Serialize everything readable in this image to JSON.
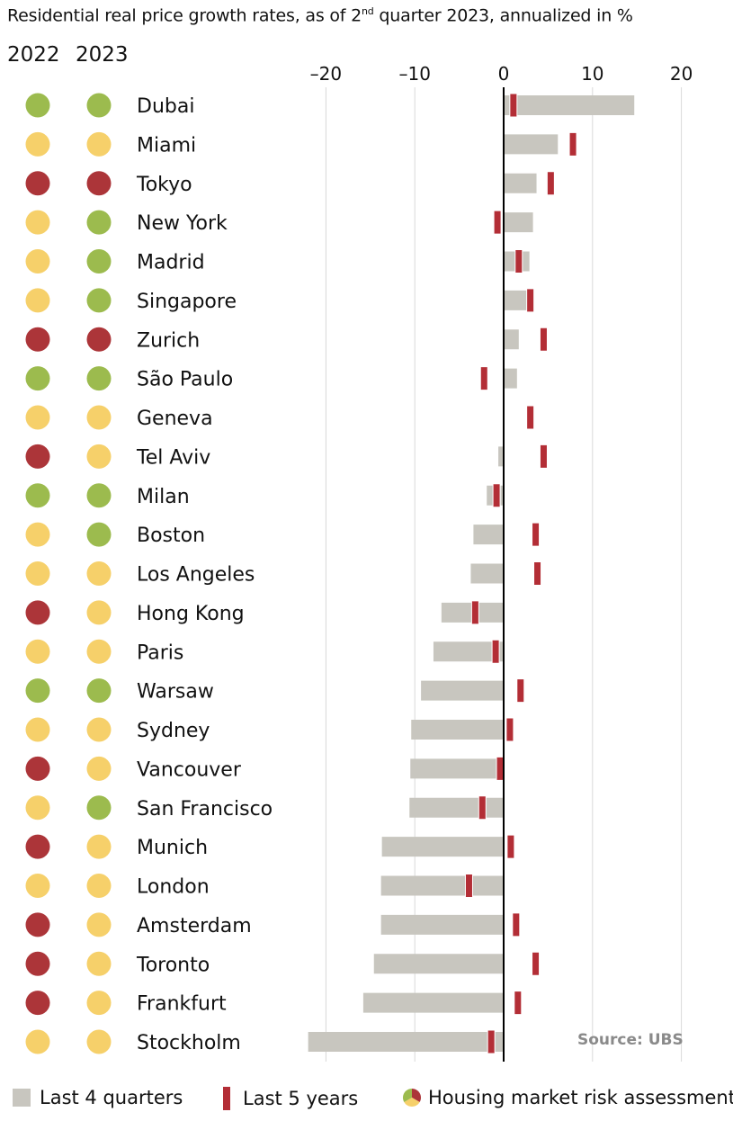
{
  "title": {
    "main": "Residential real price growth rates, as of 2",
    "sup": "nd",
    "rest": " quarter 2023, annualized in %"
  },
  "years": [
    "2022",
    "2023"
  ],
  "source": "Source: UBS",
  "legend": {
    "last4": "Last 4 quarters",
    "last5": "Last 5 years",
    "risk": "Housing market risk assessment"
  },
  "colors": {
    "green": "#9cbb4e",
    "yellow": "#f6d06a",
    "red": "#ac3539",
    "bar": "#c8c6bf",
    "marker": "#b32e36"
  },
  "chart_data": {
    "type": "bar",
    "orientation": "horizontal",
    "xlim": [
      -22,
      22
    ],
    "xticks": [
      -20,
      -10,
      0,
      10,
      20
    ],
    "xtick_labels": [
      "–20",
      "–10",
      "0",
      "10",
      "20"
    ],
    "grid": true,
    "categories": [
      "Dubai",
      "Miami",
      "Tokyo",
      "New York",
      "Madrid",
      "Singapore",
      "Zurich",
      "São Paulo",
      "Geneva",
      "Tel Aviv",
      "Milan",
      "Boston",
      "Los Angeles",
      "Hong Kong",
      "Paris",
      "Warsaw",
      "Sydney",
      "Vancouver",
      "San Francisco",
      "Munich",
      "London",
      "Amsterdam",
      "Toronto",
      "Frankfurt",
      "Stockholm"
    ],
    "series": [
      {
        "name": "Last 4 quarters",
        "values": [
          14.7,
          6.1,
          3.7,
          3.3,
          2.9,
          2.6,
          1.7,
          1.5,
          0.0,
          -0.6,
          -1.9,
          -3.4,
          -3.7,
          -7.0,
          -7.9,
          -9.3,
          -10.4,
          -10.5,
          -10.6,
          -13.7,
          -13.8,
          -13.8,
          -14.6,
          -15.8,
          -22.0
        ]
      },
      {
        "name": "Last 5 years",
        "values": [
          1.1,
          7.8,
          5.3,
          -0.7,
          1.7,
          3.0,
          4.5,
          -2.2,
          3.0,
          4.5,
          -0.8,
          3.6,
          3.8,
          -3.2,
          -0.9,
          1.9,
          0.7,
          -0.4,
          -2.4,
          0.8,
          -3.9,
          1.4,
          3.6,
          1.6,
          -1.4
        ]
      }
    ],
    "risk_2022": [
      "green",
      "yellow",
      "red",
      "yellow",
      "yellow",
      "yellow",
      "red",
      "green",
      "yellow",
      "red",
      "green",
      "yellow",
      "yellow",
      "red",
      "yellow",
      "green",
      "yellow",
      "red",
      "yellow",
      "red",
      "yellow",
      "red",
      "red",
      "red",
      "yellow"
    ],
    "risk_2023": [
      "green",
      "yellow",
      "red",
      "green",
      "green",
      "green",
      "red",
      "green",
      "yellow",
      "yellow",
      "green",
      "green",
      "yellow",
      "yellow",
      "yellow",
      "green",
      "yellow",
      "yellow",
      "green",
      "yellow",
      "yellow",
      "yellow",
      "yellow",
      "yellow",
      "yellow"
    ]
  }
}
